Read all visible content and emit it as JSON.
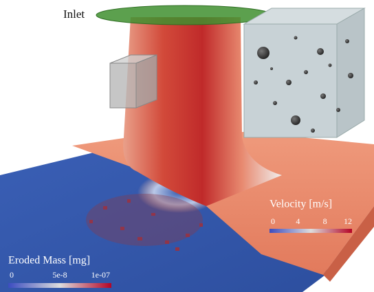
{
  "inlet_label": "Inlet",
  "velocity_legend": {
    "title": "Velocity  [m/s]",
    "ticks": [
      "0",
      "4",
      "8",
      "12"
    ]
  },
  "eroded_mass_legend": {
    "title": "Eroded Mass [mg]",
    "ticks": [
      "0",
      "5e-8",
      "1e-07"
    ]
  }
}
